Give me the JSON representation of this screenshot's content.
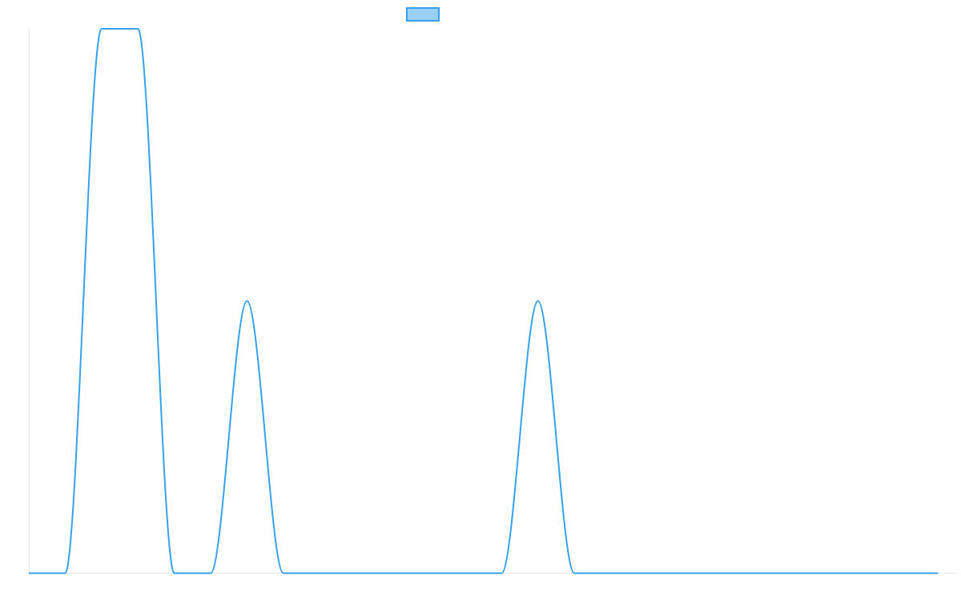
{
  "chart_data": {
    "type": "line",
    "title": "",
    "xlabel": "",
    "ylabel": "",
    "x": [
      0,
      1,
      2,
      3,
      4,
      5,
      6,
      7,
      8,
      9,
      10,
      11,
      12,
      13,
      14,
      15,
      16,
      17,
      18,
      19,
      20,
      21,
      22,
      23,
      24,
      25
    ],
    "series": [
      {
        "name": "",
        "color": "#36a2eb",
        "fill_color": "#9ad0f5",
        "values": [
          0,
          0,
          3,
          3,
          0,
          0,
          1.5,
          0,
          0,
          0,
          0,
          0,
          0,
          0,
          1.5,
          0,
          0,
          0,
          0,
          0,
          0,
          0,
          0,
          0,
          0,
          0
        ]
      }
    ],
    "ylim": [
      0,
      3
    ],
    "xlim": [
      0,
      25.5
    ],
    "grid": false,
    "axes_visible": false,
    "legend_position": "top",
    "line_shape": "smooth"
  }
}
